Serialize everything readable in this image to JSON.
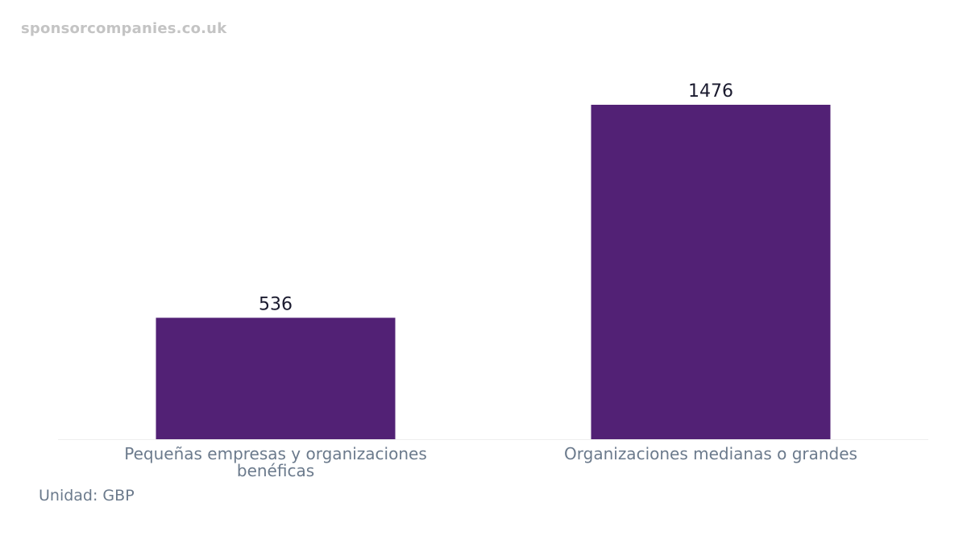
{
  "watermark": "sponsorcompanies.co.uk",
  "unit_text": "Unidad: GBP",
  "colors": {
    "bar": "#522175",
    "value_label": "#1a1a2e",
    "category_label": "#6b7a8c",
    "axis_line": "#eeeeee"
  },
  "chart_data": {
    "type": "bar",
    "categories": [
      [
        "Pequeñas empresas y organizaciones",
        "benéficas"
      ],
      [
        "Organizaciones medianas o grandes"
      ]
    ],
    "values": [
      536,
      1476
    ],
    "title": "",
    "xlabel": "",
    "ylabel": "",
    "ylim": [
      0,
      1476
    ],
    "grid": false,
    "legend": "none"
  }
}
